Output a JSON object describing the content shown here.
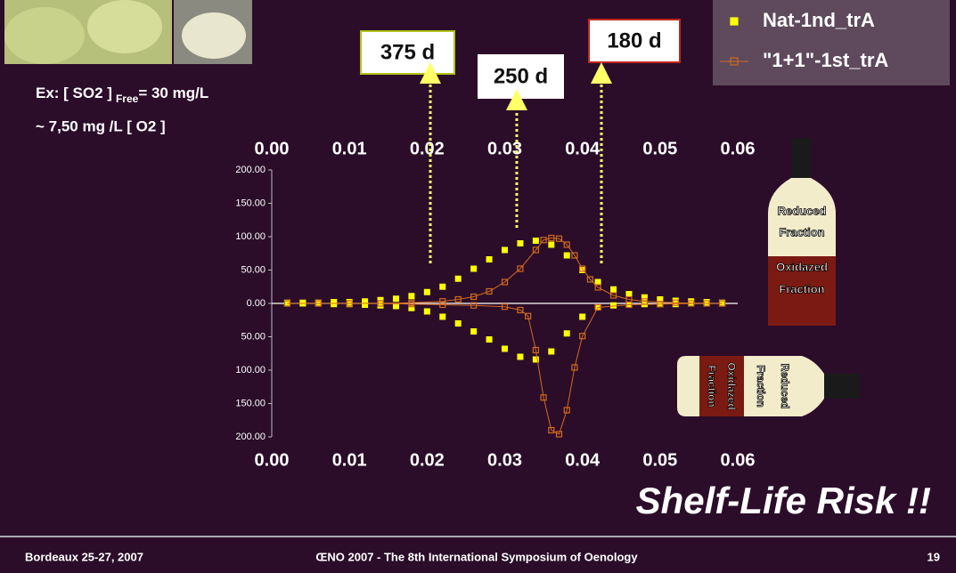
{
  "chart_data": {
    "type": "scatter",
    "xlim": [
      0,
      0.06
    ],
    "xticks": [
      {
        "value": 0,
        "label": "0.00"
      },
      {
        "value": 0.01,
        "label": "0.01"
      },
      {
        "value": 0.02,
        "label": "0.02"
      },
      {
        "value": 0.03,
        "label": "0.03"
      },
      {
        "value": 0.04,
        "label": "0.04"
      },
      {
        "value": 0.05,
        "label": "0.05"
      },
      {
        "value": 0.06,
        "label": "0.06"
      }
    ],
    "ylim": [
      -200,
      200
    ],
    "yticks": [
      {
        "value": 200,
        "label": "200.00"
      },
      {
        "value": 150,
        "label": "150.00"
      },
      {
        "value": 100,
        "label": "100.00"
      },
      {
        "value": 50,
        "label": "50.00"
      },
      {
        "value": 0,
        "label": "0.00"
      },
      {
        "value": -50,
        "label": "50.00"
      },
      {
        "value": -100,
        "label": "100.00"
      },
      {
        "value": -150,
        "label": "150.00"
      },
      {
        "value": -200,
        "label": "200.00"
      }
    ],
    "legend": "top-right",
    "series": [
      {
        "name": "Nat-1nd_trA",
        "color": "#ffff00",
        "marker": "filled-square",
        "line": false,
        "x": [
          0.002,
          0.004,
          0.006,
          0.008,
          0.01,
          0.012,
          0.014,
          0.016,
          0.018,
          0.02,
          0.022,
          0.024,
          0.026,
          0.028,
          0.03,
          0.032,
          0.034,
          0.036,
          0.038,
          0.04,
          0.042,
          0.044,
          0.046,
          0.048,
          0.05,
          0.052,
          0.054,
          0.056,
          0.058,
          0.058,
          0.056,
          0.054,
          0.052,
          0.05,
          0.048,
          0.046,
          0.044,
          0.042,
          0.04,
          0.038,
          0.036,
          0.034,
          0.032,
          0.03,
          0.028,
          0.026,
          0.024,
          0.022,
          0.02,
          0.018,
          0.016,
          0.014,
          0.012,
          0.01,
          0.008,
          0.006,
          0.004,
          0.002
        ],
        "values": [
          1,
          1,
          1,
          2,
          2,
          3,
          5,
          7,
          11,
          17,
          25,
          37,
          52,
          66,
          80,
          90,
          94,
          88,
          72,
          50,
          32,
          21,
          14,
          9,
          6,
          4,
          3,
          2,
          1,
          0,
          0,
          0,
          -1,
          -1,
          -1,
          -2,
          -3,
          -6,
          -20,
          -45,
          -72,
          -84,
          -80,
          -68,
          -54,
          -42,
          -30,
          -20,
          -12,
          -7,
          -4,
          -3,
          -2,
          -1,
          -1,
          0,
          0,
          0
        ]
      },
      {
        "name": "\"1+1\"-1st_trA",
        "color": "#d2691e",
        "marker": "hollow-square",
        "line": true,
        "x": [
          0.002,
          0.006,
          0.01,
          0.014,
          0.018,
          0.022,
          0.024,
          0.026,
          0.028,
          0.03,
          0.032,
          0.034,
          0.035,
          0.036,
          0.037,
          0.038,
          0.039,
          0.04,
          0.041,
          0.042,
          0.044,
          0.046,
          0.048,
          0.052,
          0.056,
          0.058,
          0.058,
          0.054,
          0.05,
          0.046,
          0.042,
          0.04,
          0.039,
          0.038,
          0.037,
          0.036,
          0.035,
          0.034,
          0.033,
          0.032,
          0.03,
          0.026,
          0.022,
          0.018,
          0.014,
          0.01,
          0.006,
          0.002
        ],
        "values": [
          0,
          0,
          0,
          0,
          1,
          3,
          6,
          10,
          18,
          32,
          52,
          80,
          95,
          98,
          97,
          88,
          72,
          52,
          36,
          24,
          12,
          6,
          3,
          1,
          0,
          0,
          0,
          0,
          -1,
          -2,
          -6,
          -49,
          -96,
          -160,
          -196,
          -190,
          -141,
          -70,
          -19,
          -10,
          -5,
          -3,
          -2,
          -1,
          0,
          0,
          0,
          0
        ]
      }
    ],
    "annotations": [
      "375 d",
      "250 d",
      "180 d"
    ]
  },
  "slide": {
    "so2_prefix": "Ex: [ SO2 ]",
    "so2_sub": "Free",
    "so2_suffix": "= 30 mg/L",
    "o2": "~ 7,50 mg /L [ O2 ]",
    "risk": "Shelf-Life Risk !!",
    "bottle_upright": [
      "Reduced",
      "Fraction",
      "Oxidazed",
      "Fraction"
    ],
    "bottle_lying": [
      "Reduced",
      "Fraction",
      "Oxidazed",
      "Fraction"
    ],
    "footer": {
      "left": "Bordeaux 25-27, 2007",
      "center": "ŒNO 2007 - The 8th International Symposium of Oenology",
      "page": 19
    }
  }
}
